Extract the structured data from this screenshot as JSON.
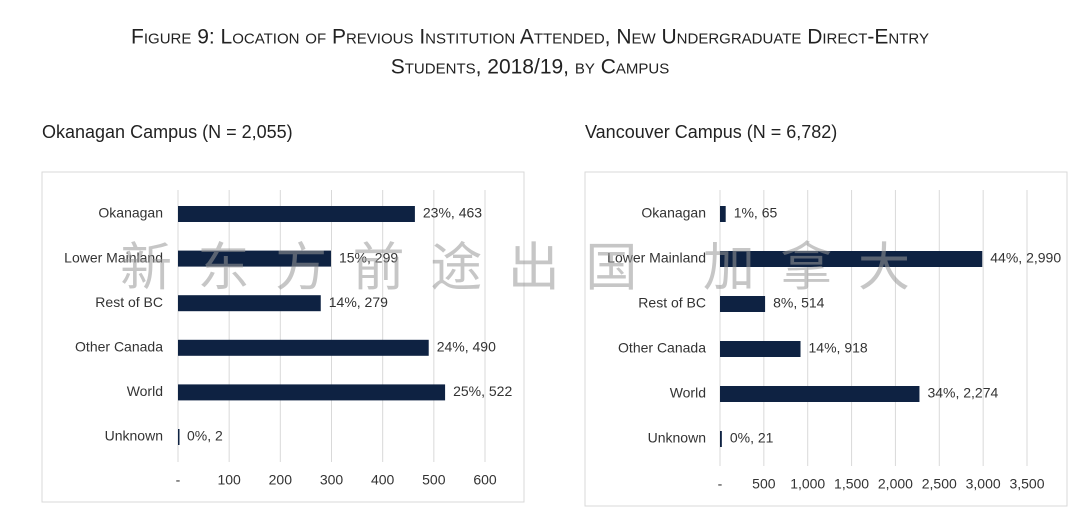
{
  "title": [
    "Figure 9: Location of Previous Institution Attended, New Undergraduate Direct-Entry",
    "Students, 2018/19, by Campus"
  ],
  "watermark": "新东方前途出国 加拿大",
  "chart_data": [
    {
      "type": "bar",
      "orientation": "horizontal",
      "title": "Okanagan Campus (N = 2,055)",
      "categories": [
        "Okanagan",
        "Lower Mainland",
        "Rest of BC",
        "Other Canada",
        "World",
        "Unknown"
      ],
      "values": [
        463,
        299,
        279,
        490,
        522,
        2
      ],
      "value_labels": [
        "23%, 463",
        "15%, 299",
        "14%, 279",
        "24%, 490",
        "25%, 522",
        "0%, 2"
      ],
      "color": "#0e2242",
      "xlim": [
        0,
        600
      ],
      "xticks": [
        {
          "value": 0,
          "label": "-"
        },
        100,
        200,
        300,
        400,
        500,
        600
      ],
      "grid": true
    },
    {
      "type": "bar",
      "orientation": "horizontal",
      "title": "Vancouver Campus (N = 6,782)",
      "categories": [
        "Okanagan",
        "Lower Mainland",
        "Rest of BC",
        "Other Canada",
        "World",
        "Unknown"
      ],
      "values": [
        65,
        2990,
        514,
        918,
        2274,
        21
      ],
      "value_labels": [
        "1%, 65",
        "44%, 2,990",
        "8%, 514",
        "14%, 918",
        "34%, 2,274",
        "0%, 21"
      ],
      "color": "#0e2242",
      "xlim": [
        0,
        3500
      ],
      "xticks": [
        {
          "value": 0,
          "label": "-"
        },
        500,
        {
          "value": 1000,
          "label": "1,000"
        },
        {
          "value": 1500,
          "label": "1,500"
        },
        {
          "value": 2000,
          "label": "2,000"
        },
        {
          "value": 2500,
          "label": "2,500"
        },
        {
          "value": 3000,
          "label": "3,000"
        },
        {
          "value": 3500,
          "label": "3,500"
        }
      ],
      "grid": true
    }
  ]
}
